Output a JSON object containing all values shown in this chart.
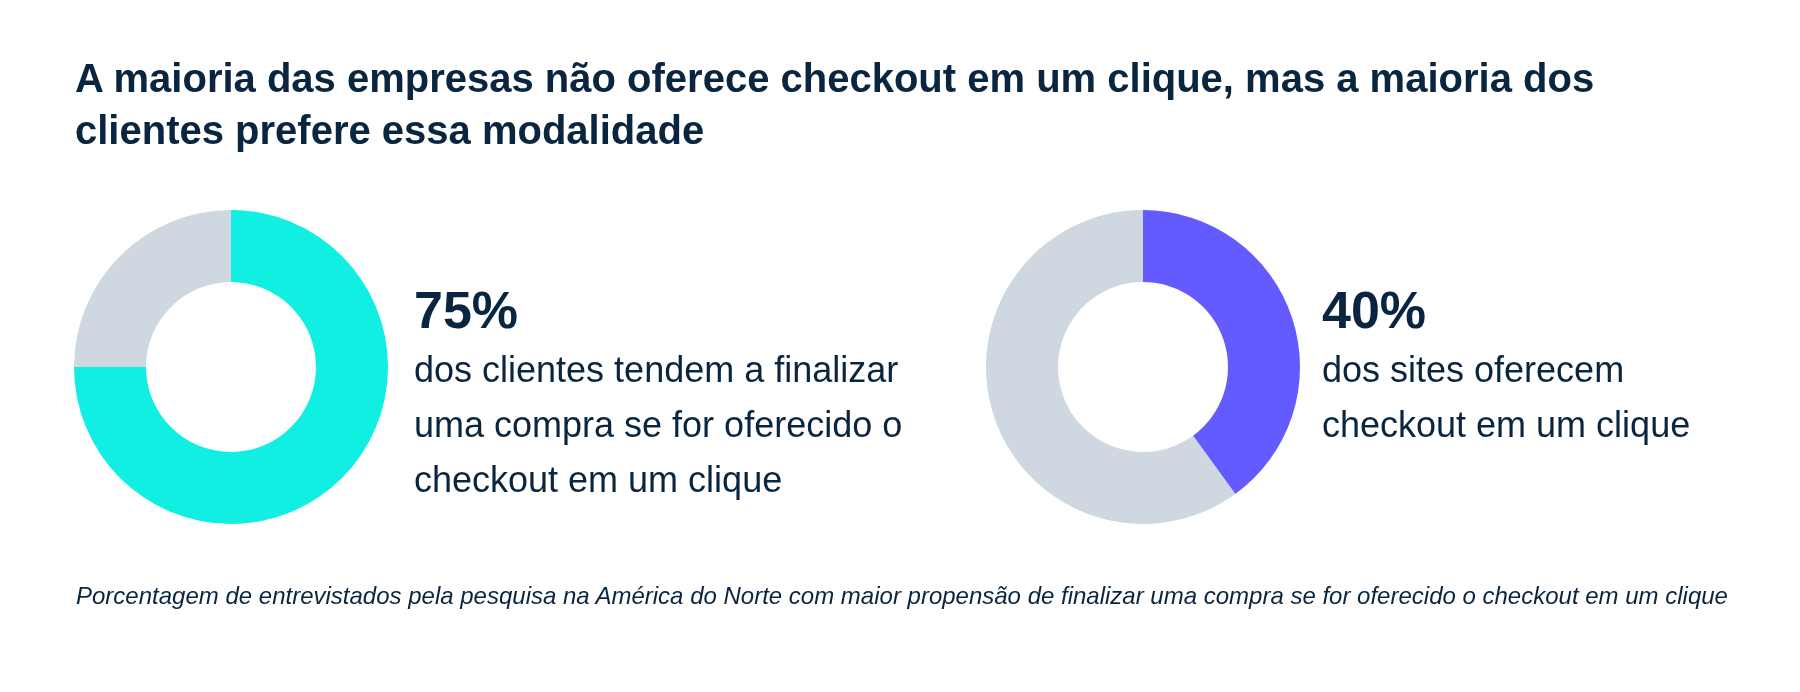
{
  "chart_data": [
    {
      "type": "donut",
      "title": "A maioria das empresas não oferece checkout em um clique, mas a maioria dos clientes prefere essa modalidade",
      "categories": [
        null,
        null
      ],
      "values": [
        75,
        25
      ],
      "colors": [
        "#11efe3",
        "#cfd8e0"
      ],
      "value_labels": [
        "75%",
        null
      ],
      "annotations": [
        "dos clientes tendem a finalizar uma compra se for oferecido o checkout em um clique",
        "Porcentagem de entrevistados pela pesquisa na América do Norte com maior propensão de finalizar uma compra se for oferecido o checkout em um clique"
      ]
    },
    {
      "type": "donut",
      "categories": [
        null,
        null
      ],
      "values": [
        40,
        60
      ],
      "colors": [
        "#635bff",
        "#cfd8e0"
      ],
      "value_labels": [
        "40%",
        null
      ],
      "annotations": [
        "dos sites oferecem checkout em um clique"
      ]
    }
  ]
}
